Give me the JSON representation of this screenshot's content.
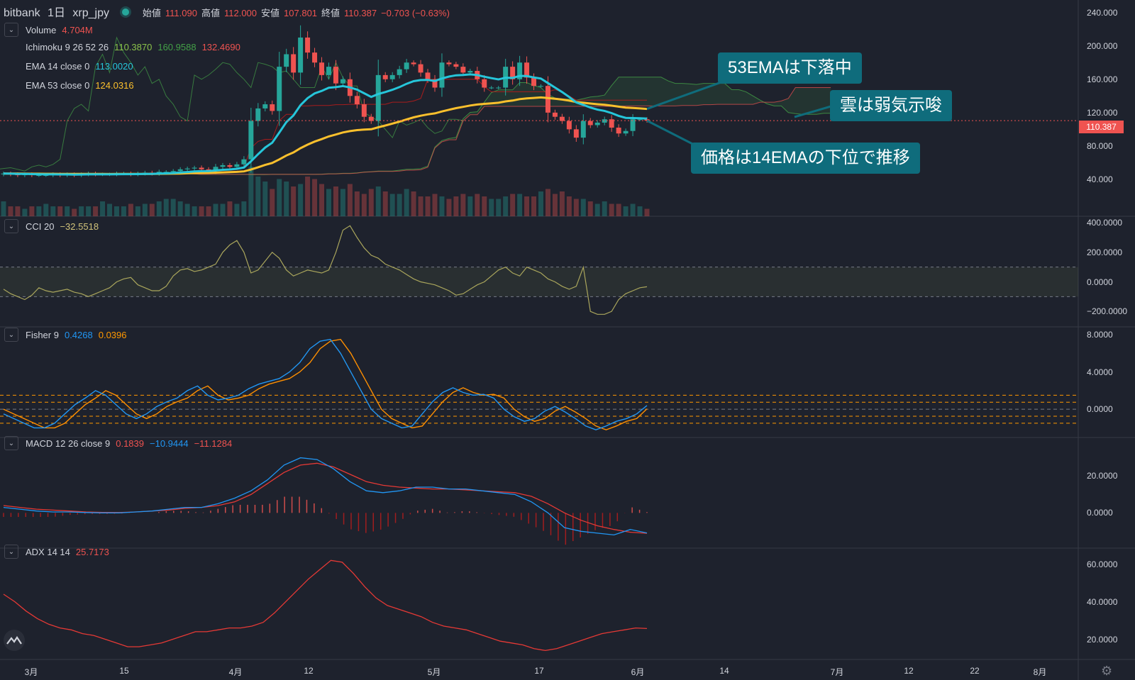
{
  "header": {
    "exchange": "bitbank",
    "interval": "1日",
    "symbol": "xrp_jpy",
    "ohlc": [
      {
        "label": "始値",
        "value": "111.090"
      },
      {
        "label": "高値",
        "value": "112.000"
      },
      {
        "label": "安値",
        "value": "107.801"
      },
      {
        "label": "終値",
        "value": "110.387"
      }
    ],
    "change": "−0.703 (−0.63%)"
  },
  "indicators": {
    "volume": {
      "name": "Volume",
      "value": "4.704M"
    },
    "ichimoku": {
      "name": "Ichimoku 9 26 52 26",
      "values": [
        "110.3870",
        "160.9588",
        "132.4690"
      ]
    },
    "ema14": {
      "name": "EMA 14 close 0",
      "value": "113.0020"
    },
    "ema53": {
      "name": "EMA 53 close 0",
      "value": "124.0316"
    },
    "cci": {
      "name": "CCI 20",
      "value": "−32.5518"
    },
    "fisher": {
      "name": "Fisher 9",
      "values": [
        "0.4268",
        "0.0396"
      ]
    },
    "macd": {
      "name": "MACD 12 26 close 9",
      "values": [
        "0.1839",
        "−10.9444",
        "−11.1284"
      ]
    },
    "adx": {
      "name": "ADX 14 14",
      "value": "25.7173"
    }
  },
  "callouts": [
    "53EMAは下落中",
    "雲は弱気示唆",
    "価格は14EMAの下位で推移"
  ],
  "last_price": "110.387",
  "colors": {
    "background": "#1e222d",
    "up": "#26a69a",
    "down": "#ef5350",
    "ema14": "#26c6da",
    "ema53": "#fbc02d",
    "callout": "#0f6c7c",
    "ichimoku_green": "#43a047",
    "fisher": "#2962ff",
    "fisher_trigger": "#ff6d00",
    "cci": "#aaa65c"
  },
  "chart_data": [
    {
      "type": "candlestick",
      "name": "xrp_jpy",
      "x_ticks": [
        "3月",
        "15",
        "4月",
        "12",
        "5月",
        "17",
        "6月",
        "14",
        "7月",
        "12",
        "22",
        "8月"
      ],
      "y_ticks": [
        "240.000",
        "200.000",
        "160.000",
        "120.000",
        "80.000",
        "40.000"
      ],
      "ylim": [
        0,
        240
      ],
      "close": [
        47,
        46,
        45,
        46,
        45,
        45,
        45,
        46,
        45,
        46,
        45,
        46,
        47,
        46,
        46,
        46,
        47,
        47,
        46,
        47,
        48,
        47,
        49,
        49,
        50,
        52,
        53,
        54,
        52,
        50,
        55,
        57,
        55,
        58,
        64,
        110,
        125,
        130,
        122,
        175,
        190,
        168,
        210,
        192,
        180,
        165,
        175,
        155,
        160,
        140,
        130,
        115,
        110,
        165,
        160,
        165,
        172,
        180,
        178,
        168,
        160,
        150,
        180,
        178,
        175,
        168,
        170,
        160,
        150,
        150,
        150,
        175,
        160,
        180,
        162,
        152,
        152,
        120,
        115,
        110,
        100,
        90,
        110,
        105,
        108,
        112,
        102,
        95,
        98,
        112,
        112,
        110.4
      ],
      "volume_bar_heights_rel": [
        0.3,
        0.2,
        0.2,
        0.15,
        0.2,
        0.2,
        0.25,
        0.2,
        0.2,
        0.2,
        0.15,
        0.2,
        0.2,
        0.2,
        0.3,
        0.25,
        0.2,
        0.2,
        0.25,
        0.2,
        0.25,
        0.25,
        0.3,
        0.35,
        0.35,
        0.3,
        0.25,
        0.2,
        0.2,
        0.2,
        0.25,
        0.25,
        0.3,
        0.25,
        0.3,
        1.0,
        0.8,
        0.7,
        0.55,
        0.75,
        0.7,
        0.6,
        0.65,
        0.8,
        0.75,
        0.65,
        0.55,
        0.6,
        0.55,
        0.65,
        0.5,
        0.45,
        0.55,
        0.6,
        0.5,
        0.45,
        0.45,
        0.55,
        0.5,
        0.4,
        0.4,
        0.45,
        0.4,
        0.35,
        0.4,
        0.45,
        0.4,
        0.45,
        0.4,
        0.35,
        0.35,
        0.4,
        0.45,
        0.45,
        0.4,
        0.4,
        0.5,
        0.55,
        0.45,
        0.5,
        0.4,
        0.35,
        0.35,
        0.3,
        0.25,
        0.3,
        0.25,
        0.25,
        0.2,
        0.25,
        0.2,
        0.15
      ]
    },
    {
      "type": "line",
      "name": "CCI 20",
      "y_ticks": [
        "400.0000",
        "200.0000",
        "0.0000",
        "−200.0000"
      ],
      "ylim": [
        -300,
        420
      ],
      "band": [
        -100,
        100
      ],
      "values": [
        -50,
        -80,
        -100,
        -120,
        -90,
        -40,
        -60,
        -70,
        -60,
        -50,
        -70,
        -80,
        -100,
        -80,
        -60,
        -40,
        0,
        20,
        30,
        -20,
        -40,
        -60,
        -60,
        -30,
        40,
        80,
        90,
        70,
        80,
        100,
        120,
        200,
        250,
        280,
        200,
        60,
        80,
        140,
        200,
        160,
        80,
        40,
        60,
        80,
        70,
        60,
        80,
        200,
        350,
        380,
        300,
        230,
        180,
        160,
        120,
        100,
        80,
        50,
        20,
        0,
        -10,
        -20,
        -40,
        -60,
        -90,
        -80,
        -50,
        -20,
        0,
        40,
        80,
        100,
        60,
        40,
        100,
        80,
        60,
        20,
        0,
        -30,
        -50,
        -30,
        100,
        -200,
        -220,
        -220,
        -200,
        -120,
        -80,
        -60,
        -40,
        -33
      ]
    },
    {
      "type": "line",
      "name": "Fisher 9",
      "y_ticks": [
        "8.0000",
        "4.0000",
        "0.0000"
      ],
      "ylim": [
        -2.5,
        8
      ],
      "series": [
        {
          "name": "0.4268",
          "values": [
            -0.5,
            -1,
            -1.5,
            -2,
            -2,
            -1.5,
            -0.5,
            0.5,
            1.2,
            2,
            1.5,
            0.5,
            -0.5,
            -1,
            -0.5,
            0.3,
            0.8,
            1.2,
            2,
            2.5,
            1.5,
            1,
            1.2,
            1.5,
            2.2,
            2.7,
            3,
            3.3,
            4,
            5,
            6.5,
            7.3,
            7.5,
            6,
            4,
            2,
            0,
            -1,
            -1.5,
            -2,
            -1.8,
            -0.5,
            0.8,
            1.8,
            2.3,
            1.8,
            1.5,
            1.6,
            1.2,
            0,
            -0.8,
            -1.3,
            -1,
            -0.2,
            0.3,
            -0.3,
            -1,
            -1.8,
            -2.2,
            -1.8,
            -1.3,
            -1,
            -0.5,
            0.4
          ]
        },
        {
          "name": "0.0396",
          "values": [
            0,
            -0.5,
            -1,
            -1.5,
            -2,
            -2,
            -1.5,
            -0.5,
            0.5,
            1.2,
            2,
            1.5,
            0.5,
            -0.5,
            -1,
            -0.5,
            0.3,
            0.8,
            1.2,
            2,
            2.5,
            1.5,
            1,
            1.2,
            1.5,
            2.2,
            2.7,
            3,
            3.3,
            4,
            5,
            6.5,
            7.3,
            7.5,
            6,
            4,
            2,
            0,
            -1,
            -1.5,
            -2,
            -1.8,
            -0.5,
            0.8,
            1.8,
            2.3,
            1.8,
            1.5,
            1.6,
            1.2,
            0,
            -0.8,
            -1.3,
            -1,
            -0.2,
            0.3,
            -0.3,
            -1,
            -1.8,
            -2.2,
            -1.8,
            -1.3,
            -1,
            0.04
          ]
        }
      ],
      "levels": [
        1.5,
        0.75,
        0,
        -0.75,
        -1.5
      ]
    },
    {
      "type": "line",
      "name": "MACD 12 26 close 9",
      "y_ticks": [
        "20.0000",
        "0.0000"
      ],
      "ylim": [
        -18,
        36
      ],
      "series": [
        {
          "name": "−10.9444",
          "values": [
            3,
            2,
            1,
            0.5,
            0.5,
            0.2,
            0,
            0,
            0.5,
            1,
            2,
            3,
            3,
            5,
            8,
            12,
            18,
            26,
            30,
            29,
            24,
            17,
            12,
            11,
            12,
            14,
            14,
            13,
            13,
            12,
            11,
            10,
            6,
            0,
            -8,
            -10,
            -11,
            -12,
            -9,
            -10.9
          ]
        },
        {
          "name": "−11.1284",
          "values": [
            4,
            3,
            2,
            1.5,
            1,
            0.5,
            0.3,
            0.2,
            0.5,
            1,
            1.5,
            2.5,
            3,
            4,
            6,
            10,
            16,
            22,
            26,
            27,
            25,
            21,
            17,
            15,
            14,
            13.5,
            13,
            13,
            12.5,
            12,
            11.5,
            11,
            9,
            5,
            0,
            -4,
            -7,
            -9,
            -10.5,
            -11.1
          ]
        }
      ]
    },
    {
      "type": "line",
      "name": "ADX 14 14",
      "y_ticks": [
        "60.0000",
        "40.0000",
        "20.0000"
      ],
      "ylim": [
        10,
        64
      ],
      "values": [
        44,
        40,
        35,
        31,
        28,
        26,
        25,
        23,
        22,
        20,
        18,
        16,
        16,
        17,
        18,
        20,
        22,
        24,
        24,
        25,
        26,
        26,
        27,
        29,
        34,
        40,
        46,
        52,
        57,
        62,
        61,
        55,
        48,
        42,
        38,
        36,
        34,
        32,
        29,
        27,
        26,
        25,
        23,
        21,
        19,
        18,
        17,
        15,
        14,
        15,
        17,
        19,
        21,
        23,
        24,
        25,
        26,
        25.7
      ]
    }
  ]
}
